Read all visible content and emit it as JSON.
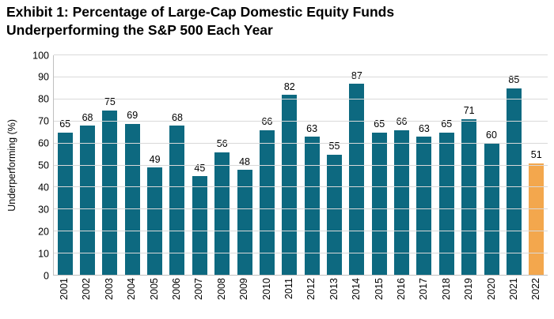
{
  "title": {
    "line1": "Exhibit 1: Percentage of Large-Cap Domestic Equity Funds",
    "line2": "Underperforming the S&P 500 Each Year"
  },
  "chart_data": {
    "type": "bar",
    "title": "Exhibit 1: Percentage of Large-Cap Domestic Equity Funds Underperforming the S&P 500 Each Year",
    "xlabel": "",
    "ylabel": "Underperforming (%)",
    "categories": [
      "2001",
      "2002",
      "2003",
      "2004",
      "2005",
      "2006",
      "2007",
      "2008",
      "2009",
      "2010",
      "2011",
      "2012",
      "2013",
      "2014",
      "2015",
      "2016",
      "2017",
      "2018",
      "2019",
      "2020",
      "2021",
      "2022"
    ],
    "values": [
      65,
      68,
      75,
      69,
      49,
      68,
      45,
      56,
      48,
      66,
      82,
      63,
      55,
      87,
      65,
      66,
      63,
      65,
      71,
      60,
      85,
      51
    ],
    "data_labels_shown": true,
    "ylim": [
      0,
      100
    ],
    "yticks": [
      0,
      10,
      20,
      30,
      40,
      50,
      60,
      70,
      80,
      90,
      100
    ],
    "grid": "horizontal",
    "legend": "none",
    "highlight_index": 21,
    "colors": {
      "bar_default": "#0d6980",
      "bar_highlight": "#f3a74d",
      "gridline": "#d9d9d9",
      "axis_line": "#bfbfbf",
      "text": "#000000"
    }
  }
}
